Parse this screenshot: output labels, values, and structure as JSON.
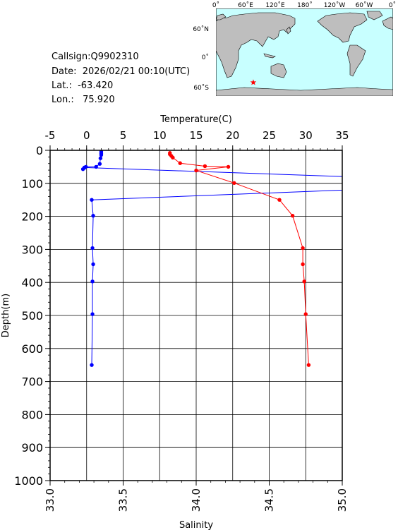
{
  "meta": {
    "callsign": "Callsign:Q9902310",
    "date": "Date:  2026/02/21 00:10(UTC)",
    "lat": "Lat.:  -63.420",
    "lon": "Lon.:   75.920"
  },
  "map": {
    "lon_labels": [
      "0˚",
      "60˚E",
      "120˚E",
      "180˚",
      "120˚W",
      "60˚W",
      "0˚"
    ],
    "lat_labels": [
      "60˚N",
      "0˚",
      "60˚S"
    ],
    "station": {
      "lat": -63.42,
      "lon": 75.92,
      "marker": "star",
      "color": "#ff0000"
    },
    "ocean_color": "#c8ffff",
    "land_color": "#bebebe"
  },
  "chart_data": {
    "type": "line",
    "xlabel_top": "Temperature(C)",
    "xlabel_bottom": "Salinity",
    "ylabel": "Depth(m)",
    "temp_range": [
      -5,
      35
    ],
    "salinity_range": [
      33.0,
      35.0
    ],
    "depth_range": [
      0,
      1000
    ],
    "temp_ticks": [
      "-5",
      "0",
      "5",
      "10",
      "15",
      "20",
      "25",
      "30",
      "35"
    ],
    "salinity_ticks": [
      "33.0",
      "33.5",
      "34.0",
      "34.5",
      "35.0"
    ],
    "depth_ticks": [
      "0",
      "100",
      "200",
      "300",
      "400",
      "500",
      "600",
      "700",
      "800",
      "900",
      "1000"
    ],
    "grid": true,
    "series": [
      {
        "axis": "temperature",
        "color": "#0000ff",
        "points": [
          [
            2.0,
            4
          ],
          [
            2.0,
            9
          ],
          [
            2.0,
            14
          ],
          [
            1.9,
            24
          ],
          [
            1.8,
            41
          ],
          [
            1.3,
            50
          ],
          [
            -0.1,
            50
          ],
          [
            -0.3,
            53
          ],
          [
            -0.5,
            57
          ],
          [
            -0.3,
            52
          ],
          [
            45,
            87
          ],
          [
            45,
            112
          ],
          [
            0.7,
            150
          ],
          [
            0.9,
            198
          ],
          [
            0.8,
            296
          ],
          [
            0.9,
            345
          ],
          [
            0.8,
            397
          ],
          [
            0.8,
            496
          ],
          [
            0.7,
            650
          ]
        ]
      },
      {
        "axis": "salinity",
        "color": "#ff0000",
        "points": [
          [
            33.82,
            8
          ],
          [
            33.82,
            12
          ],
          [
            33.83,
            17
          ],
          [
            33.84,
            22
          ],
          [
            33.89,
            39
          ],
          [
            34.06,
            48
          ],
          [
            34.22,
            50
          ],
          [
            34.0,
            61
          ],
          [
            34.26,
            99
          ],
          [
            34.57,
            150
          ],
          [
            34.66,
            198
          ],
          [
            34.73,
            296
          ],
          [
            34.73,
            345
          ],
          [
            34.74,
            397
          ],
          [
            34.75,
            496
          ],
          [
            34.77,
            650
          ]
        ]
      }
    ]
  }
}
